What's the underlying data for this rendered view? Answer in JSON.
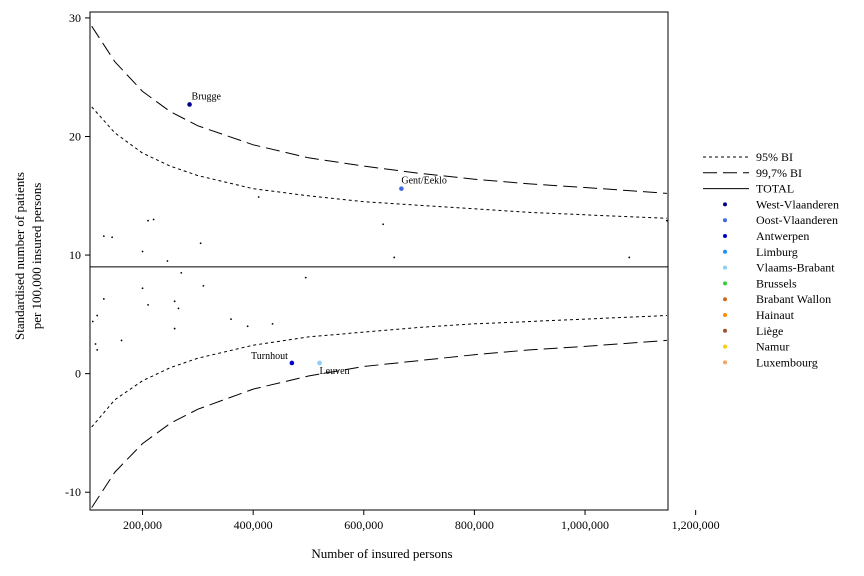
{
  "chart_data": {
    "type": "scatter",
    "xlabel": "Number of insured persons",
    "ylabel_lines": [
      "Standardised number of patients",
      "per 100,000 insured persons"
    ],
    "xlim": [
      105000,
      1150000
    ],
    "ylim": [
      -11.5,
      30.5
    ],
    "x_ticks": [
      200000,
      400000,
      600000,
      800000,
      1000000,
      1200000
    ],
    "x_tick_labels": [
      "200,000",
      "400,000",
      "600,000",
      "800,000",
      "1,000,000",
      "1,200,000"
    ],
    "y_ticks": [
      -10,
      0,
      10,
      20,
      30
    ],
    "y_tick_labels": [
      "-10",
      "0",
      "10",
      "20",
      "30"
    ],
    "total": 9.0,
    "curves": [
      {
        "name": "95% BI",
        "style": "dotted",
        "upper": [
          [
            108000,
            22.5
          ],
          [
            150000,
            20.3
          ],
          [
            200000,
            18.6
          ],
          [
            250000,
            17.5
          ],
          [
            300000,
            16.7
          ],
          [
            400000,
            15.6
          ],
          [
            500000,
            15.0
          ],
          [
            600000,
            14.5
          ],
          [
            700000,
            14.2
          ],
          [
            800000,
            13.9
          ],
          [
            900000,
            13.6
          ],
          [
            1000000,
            13.4
          ],
          [
            1148000,
            13.1
          ]
        ],
        "lower": [
          [
            108000,
            -4.5
          ],
          [
            150000,
            -2.2
          ],
          [
            200000,
            -0.6
          ],
          [
            250000,
            0.5
          ],
          [
            300000,
            1.3
          ],
          [
            400000,
            2.4
          ],
          [
            500000,
            3.1
          ],
          [
            600000,
            3.5
          ],
          [
            700000,
            3.9
          ],
          [
            800000,
            4.2
          ],
          [
            900000,
            4.4
          ],
          [
            1000000,
            4.6
          ],
          [
            1148000,
            4.9
          ]
        ]
      },
      {
        "name": "99,7% BI",
        "style": "dashed",
        "upper": [
          [
            108000,
            29.3
          ],
          [
            150000,
            26.3
          ],
          [
            200000,
            23.8
          ],
          [
            250000,
            22.1
          ],
          [
            300000,
            20.9
          ],
          [
            400000,
            19.3
          ],
          [
            500000,
            18.2
          ],
          [
            600000,
            17.5
          ],
          [
            700000,
            16.9
          ],
          [
            800000,
            16.4
          ],
          [
            900000,
            16.0
          ],
          [
            1000000,
            15.7
          ],
          [
            1148000,
            15.2
          ]
        ],
        "lower": [
          [
            108000,
            -11.3
          ],
          [
            150000,
            -8.3
          ],
          [
            200000,
            -5.9
          ],
          [
            250000,
            -4.2
          ],
          [
            300000,
            -3.0
          ],
          [
            400000,
            -1.3
          ],
          [
            500000,
            -0.2
          ],
          [
            600000,
            0.6
          ],
          [
            700000,
            1.1
          ],
          [
            800000,
            1.6
          ],
          [
            900000,
            2.0
          ],
          [
            1000000,
            2.3
          ],
          [
            1148000,
            2.8
          ]
        ]
      }
    ],
    "legend": [
      {
        "label": "95% BI",
        "kind": "dotted"
      },
      {
        "label": "99,7% BI",
        "kind": "dashed"
      },
      {
        "label": "TOTAL",
        "kind": "solid"
      },
      {
        "label": "West-Vlaanderen",
        "kind": "point",
        "color": "#00008b"
      },
      {
        "label": "Oost-Vlaanderen",
        "kind": "point",
        "color": "#4169e1"
      },
      {
        "label": "Antwerpen",
        "kind": "point",
        "color": "#0000cd"
      },
      {
        "label": "Limburg",
        "kind": "point",
        "color": "#1e90ff"
      },
      {
        "label": "Vlaams-Brabant",
        "kind": "point",
        "color": "#87cefa"
      },
      {
        "label": "Brussels",
        "kind": "point",
        "color": "#32cd32"
      },
      {
        "label": "Brabant Wallon",
        "kind": "point",
        "color": "#d2691e"
      },
      {
        "label": "Hainaut",
        "kind": "point",
        "color": "#ff8c00"
      },
      {
        "label": "Liège",
        "kind": "point",
        "color": "#a0522d"
      },
      {
        "label": "Namur",
        "kind": "point",
        "color": "#ffcc00"
      },
      {
        "label": "Luxembourg",
        "kind": "point",
        "color": "#f4a460"
      }
    ],
    "highlighted_points": [
      {
        "label": "Brugge",
        "x": 285000,
        "y": 22.7,
        "color": "#00008b"
      },
      {
        "label": "Gent/Eeklo",
        "x": 668000,
        "y": 15.6,
        "color": "#4169e1"
      },
      {
        "label": "Turnhout",
        "x": 470000,
        "y": 0.9,
        "color": "#0000cd"
      },
      {
        "label": "Leuven",
        "x": 520000,
        "y": 0.9,
        "color": "#87cefa"
      }
    ],
    "other_points": [
      {
        "x": 130000,
        "y": 11.6
      },
      {
        "x": 145000,
        "y": 11.5
      },
      {
        "x": 200000,
        "y": 10.3
      },
      {
        "x": 210000,
        "y": 12.9
      },
      {
        "x": 220000,
        "y": 13.0
      },
      {
        "x": 245000,
        "y": 9.5
      },
      {
        "x": 270000,
        "y": 8.5
      },
      {
        "x": 305000,
        "y": 11.0
      },
      {
        "x": 410000,
        "y": 14.9
      },
      {
        "x": 635000,
        "y": 12.6
      },
      {
        "x": 655000,
        "y": 9.8
      },
      {
        "x": 1080000,
        "y": 9.8
      },
      {
        "x": 1148000,
        "y": 12.9
      },
      {
        "x": 495000,
        "y": 8.1
      },
      {
        "x": 130000,
        "y": 6.3
      },
      {
        "x": 200000,
        "y": 7.2
      },
      {
        "x": 210000,
        "y": 5.8
      },
      {
        "x": 258000,
        "y": 6.1
      },
      {
        "x": 265000,
        "y": 5.5
      },
      {
        "x": 310000,
        "y": 7.4
      },
      {
        "x": 360000,
        "y": 4.6
      },
      {
        "x": 390000,
        "y": 4.0
      },
      {
        "x": 435000,
        "y": 4.2
      },
      {
        "x": 258000,
        "y": 3.8
      },
      {
        "x": 110000,
        "y": 4.4
      },
      {
        "x": 118000,
        "y": 4.9
      },
      {
        "x": 115000,
        "y": 2.5
      },
      {
        "x": 118000,
        "y": 2.0
      },
      {
        "x": 162000,
        "y": 2.8
      }
    ]
  }
}
